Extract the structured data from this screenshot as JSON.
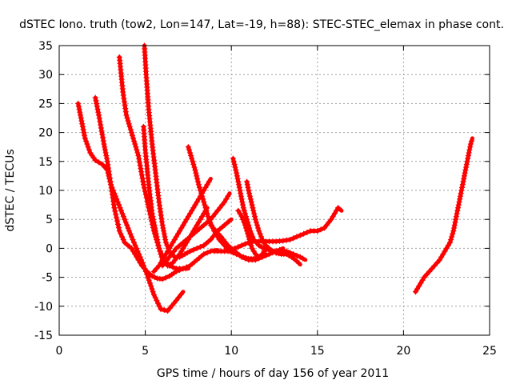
{
  "chart_data": {
    "type": "scatter",
    "title": "dSTEC Iono. truth (tow2, Lon=147, Lat=-19, h=88): STEC-STEC_elemax in phase cont.",
    "xlabel": "GPS time / hours of day 156 of year 2011",
    "ylabel": "dSTEC  / TECUs",
    "xlim": [
      0,
      25
    ],
    "ylim": [
      -15,
      35
    ],
    "xticks": [
      0,
      5,
      10,
      15,
      20,
      25
    ],
    "yticks": [
      -15,
      -10,
      -5,
      0,
      5,
      10,
      15,
      20,
      25,
      30,
      35
    ],
    "grid": true,
    "marker": "plus",
    "series_color": "#ff0000",
    "series": [
      {
        "x": [
          1.1,
          1.3,
          1.5,
          1.8,
          2.1,
          2.5,
          2.8,
          3.0,
          3.4,
          3.8,
          4.2,
          4.7,
          5.1,
          5.5,
          5.9,
          6.3,
          6.8,
          7.2
        ],
        "y": [
          25,
          22,
          19,
          16.5,
          15.2,
          14.5,
          13.5,
          11,
          8,
          5,
          2,
          -1.5,
          -4.5,
          -8,
          -10.5,
          -10.8,
          -9,
          -7.5
        ]
      },
      {
        "x": [
          2.1,
          2.3,
          2.6,
          2.8,
          3.0,
          3.2,
          3.5,
          3.8,
          4.2,
          4.5,
          4.8,
          5.1,
          5.4,
          5.7,
          6.0,
          6.4,
          6.8,
          7.2,
          7.5
        ],
        "y": [
          26,
          23,
          18,
          15,
          11,
          7,
          3,
          1,
          0,
          -1.5,
          -3,
          -4,
          -4.8,
          -5.2,
          -5.3,
          -4.8,
          -4,
          -3.5,
          -3.5
        ]
      },
      {
        "x": [
          3.5,
          3.7,
          3.9,
          4.2,
          4.6,
          4.9,
          5.2,
          5.5,
          5.8,
          6.1,
          6.4,
          6.8,
          7.2,
          7.6,
          8.0,
          8.4,
          8.8,
          9.2
        ],
        "y": [
          33,
          27,
          23,
          20,
          16,
          11,
          7,
          3,
          0,
          -2,
          -3,
          -3.5,
          -3.5,
          -3,
          -2,
          -1,
          -0.5,
          -0.3
        ]
      },
      {
        "x": [
          4.95,
          5.05,
          5.2,
          5.4,
          5.6,
          5.8,
          6.0,
          6.2,
          6.4,
          6.7,
          7.0,
          7.3,
          7.6,
          8.0,
          8.4,
          8.8,
          9.2,
          9.6,
          10.0
        ],
        "y": [
          35,
          30,
          24,
          18,
          13,
          8,
          4,
          1,
          -0.5,
          -1.5,
          -1.5,
          -1,
          -0.5,
          0,
          0.5,
          1.5,
          3,
          4,
          5
        ]
      },
      {
        "x": [
          4.9,
          5.0,
          5.2,
          5.4,
          5.6,
          5.8,
          6.0,
          6.3,
          6.6,
          7.0,
          7.4,
          7.8,
          8.2,
          8.6
        ],
        "y": [
          21,
          17,
          11,
          6,
          3,
          0,
          -2,
          -3,
          -2.5,
          -1,
          1,
          3,
          5,
          7
        ]
      },
      {
        "x": [
          5.5,
          5.8,
          6.1,
          6.5,
          6.9,
          7.3,
          7.7,
          8.1,
          8.5,
          8.8
        ],
        "y": [
          -4,
          -3,
          -1.5,
          0.5,
          2.5,
          4.5,
          6.5,
          8.5,
          10.5,
          12
        ]
      },
      {
        "x": [
          6.0,
          6.4,
          6.8,
          7.2,
          7.6,
          8.0,
          8.4,
          8.8,
          9.2,
          9.6,
          9.9
        ],
        "y": [
          -3,
          -1.5,
          0,
          1,
          2,
          3,
          4,
          5,
          6.5,
          8,
          9.5
        ]
      },
      {
        "x": [
          7.5,
          7.7,
          7.9,
          8.1,
          8.4,
          8.7,
          9.0,
          9.3,
          9.6,
          9.9,
          10.3,
          10.7,
          11.0,
          11.3,
          11.6,
          12.0
        ],
        "y": [
          17.5,
          15.5,
          13.5,
          11,
          8,
          5,
          3,
          1.5,
          0.5,
          -0.5,
          -1,
          -1.5,
          -1.8,
          -1.8,
          -1.5,
          -1
        ],
        "note_hidden": ""
      },
      {
        "x": [
          8.8,
          9.1,
          9.4,
          9.8,
          10.2,
          10.6,
          11.0,
          11.4,
          11.8,
          12.2,
          12.6,
          13.0
        ],
        "y": [
          4,
          3,
          2,
          0.5,
          -0.5,
          -1.5,
          -2,
          -2,
          -1.5,
          -1,
          -0.5,
          0
        ]
      },
      {
        "x": [
          10.1,
          10.3,
          10.5,
          10.7,
          10.9,
          11.1,
          11.3,
          11.6,
          11.9,
          12.2,
          12.5,
          12.8,
          13.2,
          13.6,
          14.0,
          14.3
        ],
        "y": [
          15.5,
          13,
          10,
          7,
          5,
          3,
          1.5,
          0.5,
          0,
          -0.3,
          -0.5,
          -0.5,
          -0.5,
          -1,
          -1.5,
          -2
        ]
      },
      {
        "x": [
          10.9,
          11.0,
          11.2,
          11.4,
          11.6,
          11.8,
          12.0,
          12.3,
          12.6,
          12.9,
          13.2,
          13.5,
          13.8,
          14.0
        ],
        "y": [
          11.5,
          10,
          7.5,
          5,
          3,
          1.5,
          0.5,
          -0.3,
          -0.8,
          -1,
          -1,
          -1.5,
          -2.2,
          -2.8
        ]
      },
      {
        "x": [
          10.4,
          10.6,
          10.8,
          11.0,
          11.2,
          11.4,
          11.6,
          11.8,
          12.0
        ],
        "y": [
          6.5,
          5.5,
          4,
          2,
          0,
          -1,
          -1.5,
          -1,
          0
        ]
      },
      {
        "x": [
          9.0,
          9.4,
          9.8,
          10.2,
          10.6,
          11.0,
          11.4,
          11.8,
          12.2,
          12.6,
          13.0,
          13.4,
          13.8,
          14.2,
          14.6,
          15.0,
          15.4,
          15.8,
          16.2,
          16.4
        ],
        "y": [
          -0.5,
          -0.5,
          -0.5,
          0,
          0.5,
          1,
          1.2,
          1.2,
          1.2,
          1.2,
          1.3,
          1.5,
          2,
          2.5,
          3,
          3,
          3.5,
          5,
          7,
          6.5
        ]
      },
      {
        "x": [
          20.7,
          20.9,
          21.2,
          21.5,
          21.8,
          22.1,
          22.4,
          22.7,
          22.9,
          23.1,
          23.3,
          23.5,
          23.7,
          23.9,
          24.0
        ],
        "y": [
          -7.5,
          -6.5,
          -5,
          -4,
          -3,
          -2,
          -0.5,
          1,
          3,
          6,
          9,
          12,
          15,
          18,
          19
        ]
      }
    ]
  }
}
